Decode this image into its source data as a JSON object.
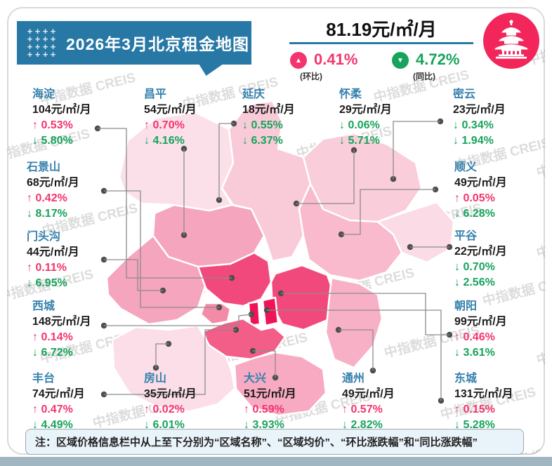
{
  "title": "2026年3月北京租金地图",
  "summary": {
    "avg_price": "81.19元/㎡/月",
    "mom_value": "0.41%",
    "mom_label": "(环比)",
    "mom_dir": "up",
    "yoy_value": "4.72%",
    "yoy_label": "(同比)",
    "yoy_dir": "down"
  },
  "note": "注：区域价格信息栏中从上至下分别为“区域名称”、“区域均价”、“环比涨跌幅”和“同比涨跌幅”",
  "watermark_text": "中指数据 CREIS",
  "colors": {
    "banner_blue": "#2878A6",
    "up_pink": "#F2356D",
    "down_green": "#17A35B",
    "district_name_blue": "#3580AC",
    "logo_pink": "#F2265B",
    "bottom_strip": "#A0B6C1"
  },
  "districts": [
    {
      "id": "haidian",
      "name": "海淀",
      "price": "104元/㎡/月",
      "mom": "0.53%",
      "mom_dir": "up",
      "yoy": "5.80%",
      "yoy_dir": "down",
      "map_color": "#F1497C"
    },
    {
      "id": "changping",
      "name": "昌平",
      "price": "54元/㎡/月",
      "mom": "0.70%",
      "mom_dir": "up",
      "yoy": "4.16%",
      "yoy_dir": "down",
      "map_color": "#F5A5BE"
    },
    {
      "id": "yanqing",
      "name": "延庆",
      "price": "18元/㎡/月",
      "mom": "0.55%",
      "mom_dir": "down",
      "yoy": "6.37%",
      "yoy_dir": "down",
      "map_color": "#FBE0E9"
    },
    {
      "id": "huairou",
      "name": "怀柔",
      "price": "29元/㎡/月",
      "mom": "0.06%",
      "mom_dir": "down",
      "yoy": "5.71%",
      "yoy_dir": "down",
      "map_color": "#F9CBD9"
    },
    {
      "id": "miyun",
      "name": "密云",
      "price": "23元/㎡/月",
      "mom": "0.34%",
      "mom_dir": "down",
      "yoy": "1.94%",
      "yoy_dir": "down",
      "map_color": "#F9CDDA"
    },
    {
      "id": "shijingshan",
      "name": "石景山",
      "price": "68元/㎡/月",
      "mom": "0.42%",
      "mom_dir": "up",
      "yoy": "8.17%",
      "yoy_dir": "down",
      "map_color": "#F38AA8"
    },
    {
      "id": "shunyi",
      "name": "顺义",
      "price": "49元/㎡/月",
      "mom": "0.05%",
      "mom_dir": "up",
      "yoy": "6.28%",
      "yoy_dir": "down",
      "map_color": "#F8BACC"
    },
    {
      "id": "mentougou",
      "name": "门头沟",
      "price": "44元/㎡/月",
      "mom": "0.11%",
      "mom_dir": "up",
      "yoy": "6.95%",
      "yoy_dir": "down",
      "map_color": "#F5A5BE"
    },
    {
      "id": "pinggu",
      "name": "平谷",
      "price": "22元/㎡/月",
      "mom": "0.70%",
      "mom_dir": "down",
      "yoy": "2.56%",
      "yoy_dir": "down",
      "map_color": "#FBDCE6"
    },
    {
      "id": "xicheng",
      "name": "西城",
      "price": "148元/㎡/月",
      "mom": "0.14%",
      "mom_dir": "up",
      "yoy": "6.72%",
      "yoy_dir": "down",
      "map_color": "#F01358"
    },
    {
      "id": "chaoyang",
      "name": "朝阳",
      "price": "99元/㎡/月",
      "mom": "0.46%",
      "mom_dir": "up",
      "yoy": "3.61%",
      "yoy_dir": "down",
      "map_color": "#F1497C"
    },
    {
      "id": "fengtai",
      "name": "丰台",
      "price": "74元/㎡/月",
      "mom": "0.47%",
      "mom_dir": "up",
      "yoy": "4.49%",
      "yoy_dir": "down",
      "map_color": "#F25E88"
    },
    {
      "id": "fangshan",
      "name": "房山",
      "price": "35元/㎡/月",
      "mom": "0.02%",
      "mom_dir": "up",
      "yoy": "6.01%",
      "yoy_dir": "down",
      "map_color": "#FBDEE7"
    },
    {
      "id": "daxing",
      "name": "大兴",
      "price": "51元/㎡/月",
      "mom": "0.59%",
      "mom_dir": "up",
      "yoy": "3.93%",
      "yoy_dir": "down",
      "map_color": "#F7AAC2"
    },
    {
      "id": "tongzhou",
      "name": "通州",
      "price": "49元/㎡/月",
      "mom": "0.57%",
      "mom_dir": "up",
      "yoy": "2.82%",
      "yoy_dir": "down",
      "map_color": "#F8B0C6"
    },
    {
      "id": "dongcheng",
      "name": "东城",
      "price": "131元/㎡/月",
      "mom": "0.15%",
      "mom_dir": "up",
      "yoy": "5.28%",
      "yoy_dir": "down",
      "map_color": "#F01358"
    }
  ]
}
